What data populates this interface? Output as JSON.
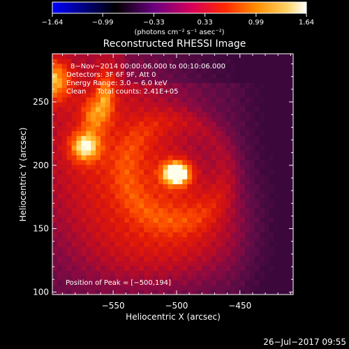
{
  "chart_data": {
    "type": "heatmap",
    "title": "Reconstructed RHESSI Image",
    "xlabel": "Heliocentric X (arcsec)",
    "ylabel": "Heliocentric Y (arcsec)",
    "xlim": [
      -598,
      -408
    ],
    "ylim": [
      98,
      288
    ],
    "x_ticks": [
      -550,
      -500,
      -450
    ],
    "x_tick_labels": [
      "−550",
      "−500",
      "−450"
    ],
    "y_ticks": [
      100,
      150,
      200,
      250
    ],
    "y_tick_labels": [
      "100",
      "150",
      "200",
      "250"
    ],
    "colorbar": {
      "range": [
        -1.64,
        1.64
      ],
      "ticks": [
        -1.64,
        -0.99,
        -0.33,
        0.33,
        0.99,
        1.64
      ],
      "tick_labels": [
        "−1.64",
        "−0.99",
        "−0.33",
        "0.33",
        "0.99",
        "1.64"
      ],
      "unit_label": "(photons cm⁻² s⁻¹ asec⁻²)",
      "colormap": [
        "#0000ff",
        "#000000",
        "#6a0080",
        "#d8005a",
        "#ff2800",
        "#ff8c00",
        "#ffd060",
        "#ffffff"
      ]
    },
    "peak": [
      -500,
      194
    ],
    "grid": false
  },
  "annotations": [
    "8−Nov−2014 00:00:06.000 to 00:10:06.000",
    "Detectors: 3F 6F 9F, Att 0",
    "Energy Range: 3.0 − 6.0 keV",
    "Clean     Total counts: 2.41E+05"
  ],
  "peak_label": "Position of Peak = [−500,194]",
  "timestamp": "26−Jul−2017 09:55"
}
